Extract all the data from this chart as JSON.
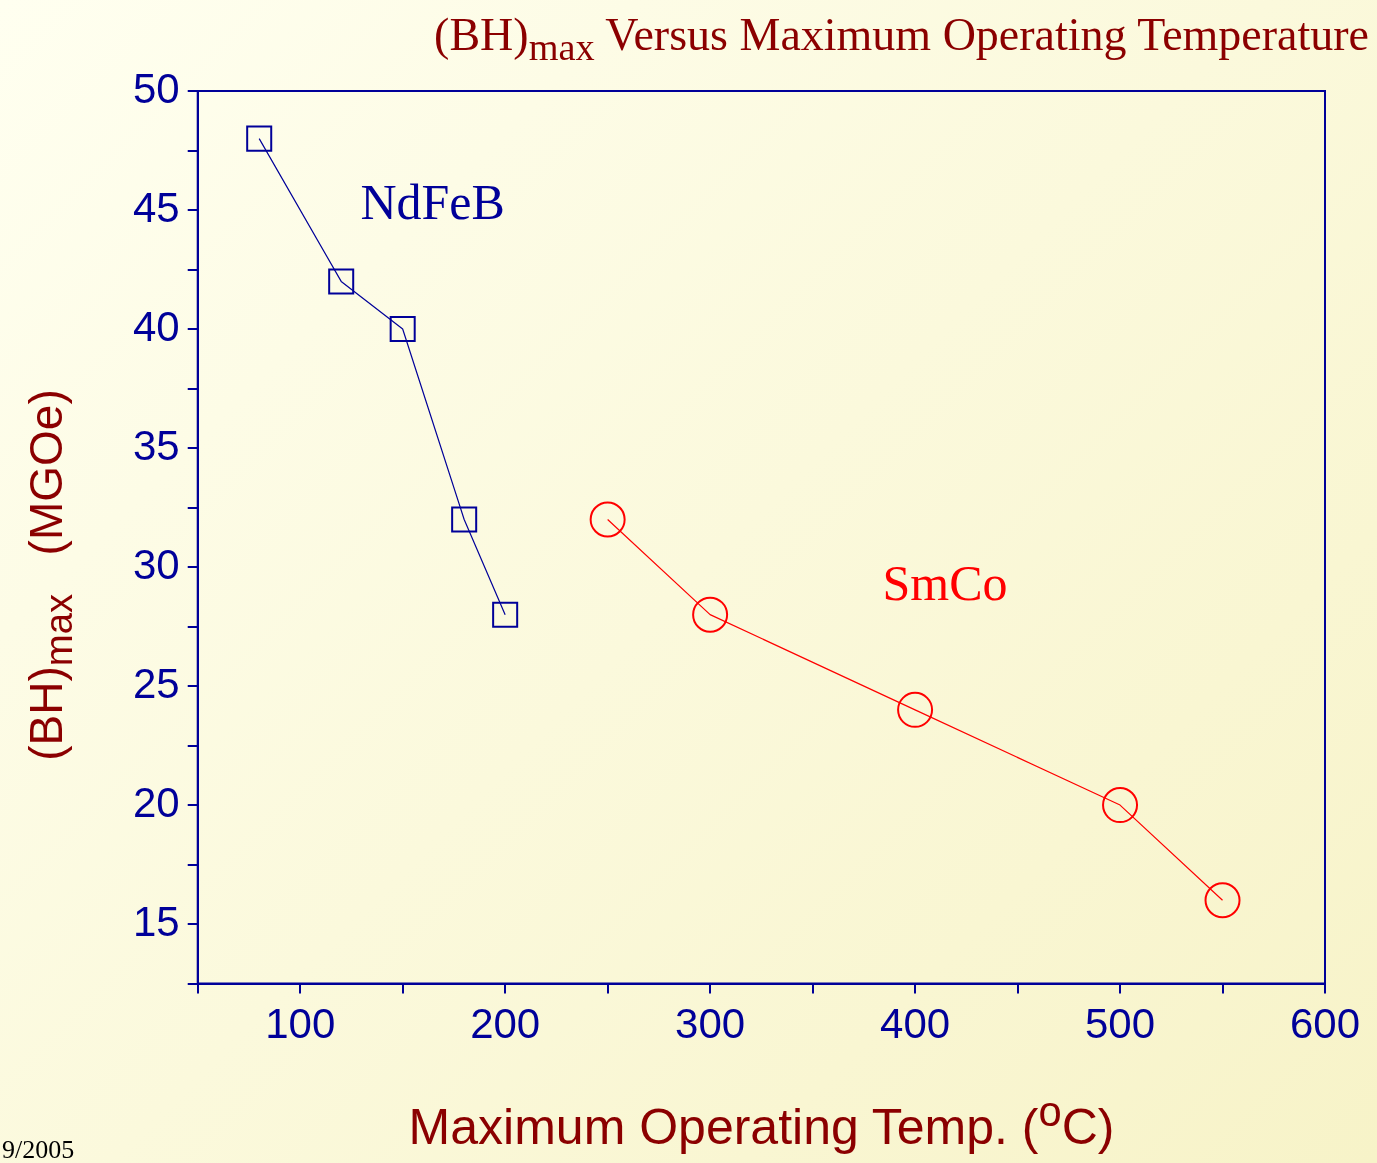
{
  "chart_data": {
    "type": "line",
    "title": "(BH)$_{max}$ Versus Maximum Operating Temperature",
    "xlabel": "Maximum Operating Temp. ($^{o}$C)",
    "ylabel": "(BH)$_{max}$   (MGOe)",
    "xlim": [
      50,
      600
    ],
    "xticks": [
      {
        "value": 50,
        "label": null
      },
      100,
      {
        "value": 150,
        "label": null
      },
      200,
      {
        "value": 250,
        "label": null
      },
      300,
      {
        "value": 350,
        "label": null
      },
      400,
      {
        "value": 450,
        "label": null
      },
      500,
      {
        "value": 550,
        "label": null
      },
      600
    ],
    "ylim": [
      12.5,
      50
    ],
    "yticks": [
      {
        "value": 12.5,
        "label": null
      },
      15,
      {
        "value": 17.5,
        "label": null
      },
      20,
      {
        "value": 22.5,
        "label": null
      },
      25,
      {
        "value": 27.5,
        "label": null
      },
      30,
      {
        "value": 32.5,
        "label": null
      },
      35,
      {
        "value": 37.5,
        "label": null
      },
      40,
      {
        "value": 42.5,
        "label": null
      },
      45,
      {
        "value": 47.5,
        "label": null
      },
      50
    ],
    "legend": false,
    "series": [
      {
        "name": "NdFeB",
        "color": "#000099",
        "marker": "square",
        "x": [
          80,
          120,
          150,
          180,
          200
        ],
        "values": [
          48,
          42,
          40,
          32,
          28
        ]
      },
      {
        "name": "SmCo",
        "color": "#ff0000",
        "marker": "circle",
        "x": [
          250,
          300,
          400,
          500,
          550
        ],
        "values": [
          32,
          28,
          24,
          20,
          16
        ]
      }
    ],
    "annotations": [
      "9/2005"
    ]
  }
}
